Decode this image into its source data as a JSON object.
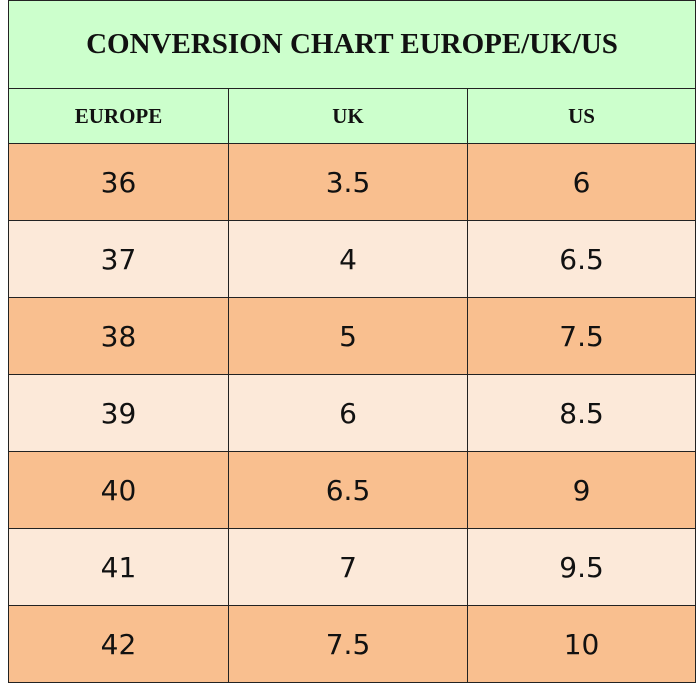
{
  "table": {
    "title": "CONVERSION CHART EUROPE/UK/US",
    "headers": [
      "EUROPE",
      "UK",
      "US"
    ],
    "rows": [
      [
        36,
        3.5,
        6
      ],
      [
        37,
        4,
        6.5
      ],
      [
        38,
        5,
        7.5
      ],
      [
        39,
        6,
        8.5
      ],
      [
        40,
        6.5,
        9
      ],
      [
        41,
        7,
        9.5
      ],
      [
        42,
        7.5,
        10
      ]
    ]
  }
}
